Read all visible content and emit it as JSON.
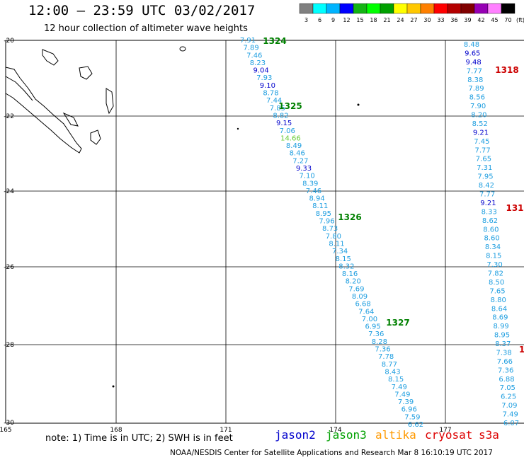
{
  "header": {
    "title": "12:00 – 23:59 UTC 03/02/2017",
    "subtitle": "12 hour collection of altimeter wave heights"
  },
  "colorbar": {
    "labels": [
      "3",
      "6",
      "9",
      "12",
      "15",
      "18",
      "21",
      "24",
      "27",
      "30",
      "33",
      "36",
      "39",
      "42",
      "45",
      "70"
    ],
    "unit": "(ft)",
    "colors": [
      "#808080",
      "#00ffff",
      "#00b4ff",
      "#0000ff",
      "#14b414",
      "#00ff00",
      "#00a000",
      "#ffff00",
      "#ffc800",
      "#ff8000",
      "#ff0000",
      "#b40000",
      "#800000",
      "#9600b4",
      "#ff80ff",
      "#000000"
    ]
  },
  "axes": {
    "lat_labels": [
      "-20",
      "-22",
      "-24",
      "-26",
      "-28",
      "-30"
    ],
    "lon_labels": [
      "165",
      "168",
      "171",
      "174",
      "177"
    ]
  },
  "passes": [
    {
      "id": "1324",
      "color": "#008000"
    },
    {
      "id": "1325",
      "color": "#008000"
    },
    {
      "id": "1326",
      "color": "#008000"
    },
    {
      "id": "1327",
      "color": "#008000"
    },
    {
      "id": "1318",
      "color": "#cc0000"
    },
    {
      "id": "131",
      "color": "#cc0000"
    },
    {
      "id": "1",
      "color": "#cc0000"
    }
  ],
  "track_a": [
    "7.91",
    "7.89",
    "7.46",
    "8.23",
    "9.04",
    "7.93",
    "9.10",
    "8.78",
    "7.44",
    "7.85",
    "8.82",
    "9.15",
    "7.06",
    "14.66",
    "8.49",
    "8.46",
    "7.27",
    "9.33",
    "7.10",
    "8.39",
    "7.46",
    "8.94",
    "8.11",
    "8.95",
    "7.96",
    "8.73",
    "7.80",
    "8.11",
    "7.34",
    "8.15",
    "8.32",
    "8.16",
    "8.20",
    "7.69",
    "8.09",
    "6.68",
    "7.64",
    "7.00",
    "6.95",
    "7.36",
    "8.28",
    "7.36",
    "7.78",
    "8.77",
    "8.43",
    "8.15",
    "7.49",
    "7.49",
    "7.39",
    "6.96",
    "7.59",
    "6.62"
  ],
  "track_b": [
    "8.48",
    "9.65",
    "9.48",
    "7.77",
    "8.38",
    "7.89",
    "8.56",
    "7.90",
    "8.20",
    "8.52",
    "9.21",
    "7.45",
    "7.77",
    "7.65",
    "7.31",
    "7.95",
    "8.42",
    "7.77",
    "9.21",
    "8.33",
    "8.62",
    "8.60",
    "8.60",
    "8.34",
    "8.15",
    "7.30",
    "7.82",
    "8.50",
    "7.65",
    "8.80",
    "8.64",
    "8.69",
    "8.99",
    "8.95",
    "8.37",
    "7.38",
    "7.66",
    "7.36",
    "6.88",
    "7.05",
    "6.25",
    "7.09",
    "7.49",
    "6.07"
  ],
  "note": "note: 1) Time is in UTC; 2) SWH is in feet",
  "satellites": [
    {
      "name": "jason2",
      "color": "#0000cc"
    },
    {
      "name": "jason3",
      "color": "#00a000"
    },
    {
      "name": "altika",
      "color": "#ff9900"
    },
    {
      "name": "cryosat",
      "color": "#dd0000"
    },
    {
      "name": "s3a",
      "color": "#dd0000"
    }
  ],
  "footer": "NOAA/NESDIS Center for Satellite Applications and Research   Mar  8 16:10:19 UTC 2017"
}
